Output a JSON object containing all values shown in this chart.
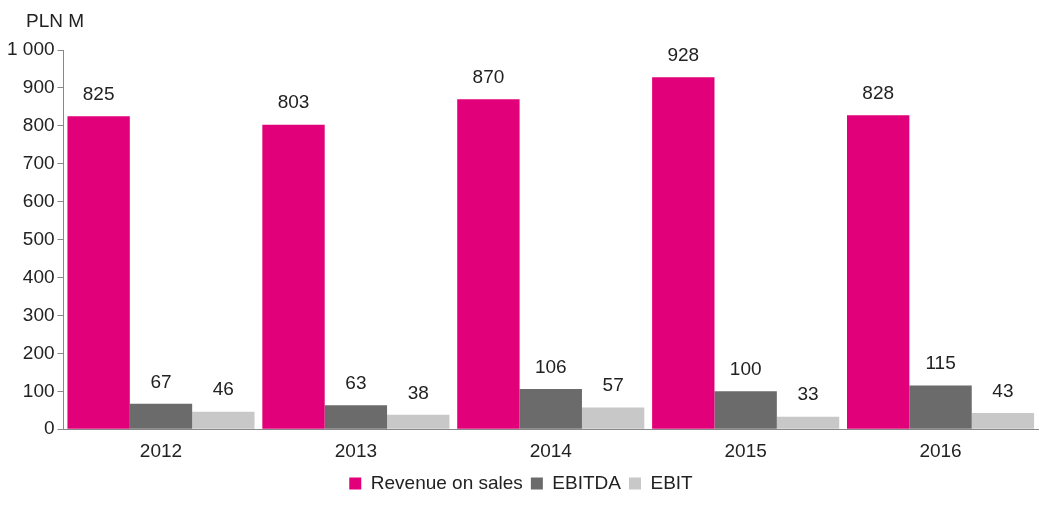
{
  "chart_data": {
    "type": "bar",
    "ylabel": "PLN M",
    "categories": [
      "2012",
      "2013",
      "2014",
      "2015",
      "2016"
    ],
    "series": [
      {
        "name": "Revenue on sales",
        "color": "#e2007a",
        "values": [
          825,
          803,
          870,
          928,
          828
        ]
      },
      {
        "name": "EBITDA",
        "color": "#6b6b6b",
        "values": [
          67,
          63,
          106,
          100,
          115
        ]
      },
      {
        "name": "EBIT",
        "color": "#c8c8c8",
        "values": [
          46,
          38,
          57,
          33,
          43
        ]
      }
    ],
    "ylim": [
      0,
      1000
    ],
    "yticks": [
      0,
      100,
      200,
      300,
      400,
      500,
      600,
      700,
      800,
      900,
      {
        "value": 1000,
        "label": "1 000"
      }
    ],
    "grid": false,
    "legend": "bottom",
    "data_labels": true
  }
}
